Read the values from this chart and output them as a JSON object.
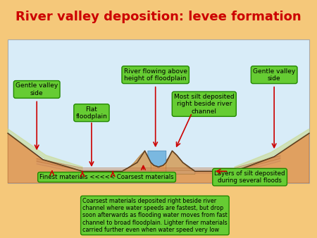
{
  "title": "River valley deposition: levee formation",
  "title_color": "#cc0000",
  "title_bg": "#ffff00",
  "bg_color": "#f5c87a",
  "diagram_bg": "#ddeeff",
  "box_fill": "#66cc33",
  "box_edge": "#228800",
  "arrow_color": "#cc0000",
  "labels": {
    "gentle_left": "Gentle valley\nside",
    "gentle_right": "Gentle valley\nside",
    "flat_floodplain": "Flat\nfloodplain",
    "river_above": "River flowing above\nheight of floodplain",
    "most_silt": "Most silt deposited\nright beside river\nchannel",
    "finest": "Finest materials <<<<< Coarsest materials",
    "layers_silt": "Layers of silt deposited\nduring several floods",
    "coarsest": "Coarsest materials deposited right beside river\nchannel where water speeds are fastest, but drop\nsoon afterwards as flooding water moves from fast\nchannel to broad floodplain. Lighter finer materials\ncarried further even when water speed very low"
  }
}
